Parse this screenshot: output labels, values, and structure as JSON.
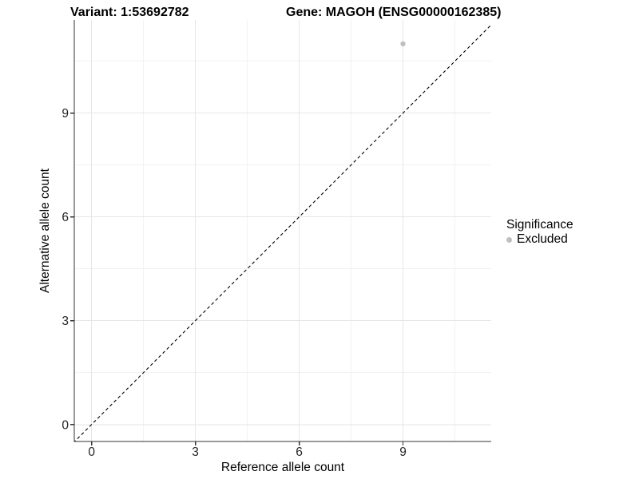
{
  "titles": {
    "variant": "Variant: 1:53692782",
    "gene": "Gene: MAGOH (ENSG00000162385)"
  },
  "legend": {
    "title": "Significance",
    "items": [
      {
        "label": "Excluded",
        "color": "#bfbfbf"
      }
    ],
    "position": "right"
  },
  "chart_data": {
    "type": "scatter",
    "title": "Variant: 1:53692782   Gene: MAGOH (ENSG00000162385)",
    "xlabel": "Reference allele count",
    "ylabel": "Alternative allele count",
    "points": [
      {
        "x": 9,
        "y": 11,
        "series": "Excluded",
        "color": "#bfbfbf"
      }
    ],
    "reference_line": {
      "equation": "y = x",
      "style": "dashed",
      "color": "#000000"
    },
    "x_ticks": [
      0,
      3,
      6,
      9
    ],
    "y_ticks": [
      0,
      3,
      6,
      9
    ],
    "x_minor_ticks": [
      1.5,
      4.5,
      7.5,
      10.5
    ],
    "y_minor_ticks": [
      1.5,
      4.5,
      7.5,
      10.5
    ],
    "xlim": [
      -0.5,
      11.55
    ],
    "ylim": [
      -0.49,
      11.69
    ],
    "grid": true,
    "legend_position": "right",
    "colors": {
      "grid_major": "#e6e6e6",
      "grid_minor": "#f2f2f2",
      "axis_line": "#333333",
      "tick_text": "#262626",
      "point": "#bfbfbf",
      "reference_line": "#000000"
    }
  }
}
